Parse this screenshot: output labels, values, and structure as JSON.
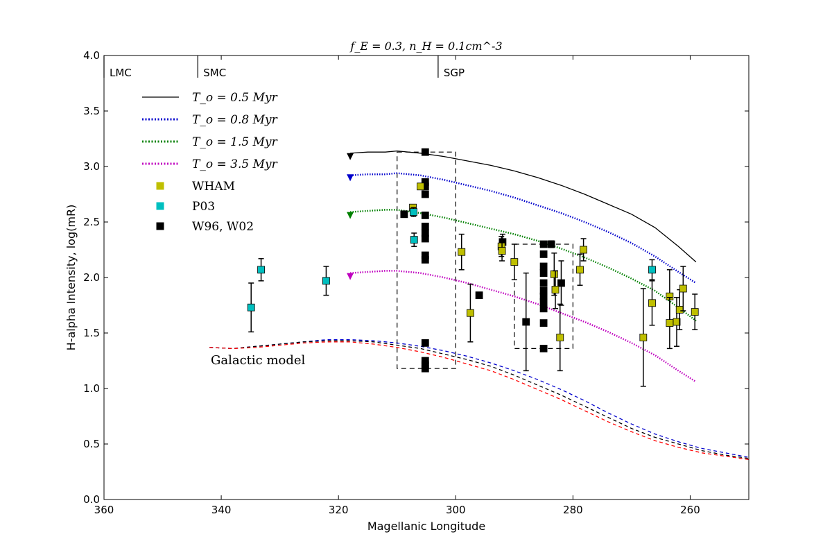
{
  "chart_data": {
    "type": "scatter",
    "title": "f_E = 0.3, n_H = 0.1cm^-3",
    "xlabel": "Magellanic Longitude",
    "ylabel": "H-alpha Intensity, log(mR)",
    "xlim": [
      360,
      250
    ],
    "ylim": [
      0.0,
      4.0
    ],
    "xticks": [
      360,
      340,
      320,
      300,
      280,
      260
    ],
    "yticks": [
      0.0,
      0.5,
      1.0,
      1.5,
      2.0,
      2.5,
      3.0,
      3.5,
      4.0
    ],
    "xtick_labels": [
      "360",
      "340",
      "320",
      "300",
      "280",
      "260"
    ],
    "ytick_labels": [
      "0.0",
      "0.5",
      "1.0",
      "1.5",
      "2.0",
      "2.5",
      "3.0",
      "3.5",
      "4.0"
    ],
    "grid": false,
    "legend_position": "upper-left",
    "markers": [
      {
        "label": "LMC",
        "x": 360
      },
      {
        "label": "SMC",
        "x": 344
      },
      {
        "label": "SGP",
        "x": 303
      }
    ],
    "annotation": "Galactic model",
    "model_x": [
      318,
      315,
      312,
      310,
      306,
      302,
      298,
      294,
      290,
      286,
      282,
      278,
      274,
      270,
      266,
      262,
      259
    ],
    "model_series": [
      {
        "name": "T_o = 0.5 Myr",
        "color": "#000000",
        "style": "solid",
        "start_y": 3.07,
        "values": [
          3.12,
          3.13,
          3.13,
          3.14,
          3.12,
          3.09,
          3.05,
          3.01,
          2.96,
          2.9,
          2.83,
          2.75,
          2.66,
          2.57,
          2.45,
          2.28,
          2.14
        ]
      },
      {
        "name": "T_o = 0.8 Myr",
        "color": "#0000cc",
        "style": "dotted",
        "start_y": 2.88,
        "values": [
          2.92,
          2.93,
          2.93,
          2.94,
          2.92,
          2.88,
          2.83,
          2.78,
          2.72,
          2.65,
          2.58,
          2.5,
          2.41,
          2.31,
          2.19,
          2.05,
          1.95
        ]
      },
      {
        "name": "T_o = 1.5 Myr",
        "color": "#008000",
        "style": "dotted",
        "start_y": 2.54,
        "values": [
          2.59,
          2.6,
          2.61,
          2.61,
          2.58,
          2.54,
          2.49,
          2.44,
          2.39,
          2.33,
          2.26,
          2.18,
          2.09,
          1.99,
          1.88,
          1.73,
          1.61
        ]
      },
      {
        "name": "T_o = 3.5 Myr",
        "color": "#bf00bf",
        "style": "dotted",
        "start_y": 1.99,
        "values": [
          2.04,
          2.05,
          2.06,
          2.06,
          2.04,
          2.0,
          1.95,
          1.89,
          1.83,
          1.76,
          1.68,
          1.6,
          1.51,
          1.41,
          1.3,
          1.16,
          1.06
        ]
      }
    ],
    "galactic_x": [
      342,
      338,
      334,
      330,
      326,
      322,
      318,
      314,
      310,
      306,
      302,
      298,
      294,
      290,
      286,
      282,
      278,
      274,
      270,
      266,
      262,
      258,
      254,
      250
    ],
    "galactic_series": [
      {
        "name": "Galactic model (blue)",
        "color": "#0000cc",
        "values": [
          1.37,
          1.36,
          1.38,
          1.4,
          1.42,
          1.44,
          1.44,
          1.43,
          1.41,
          1.38,
          1.34,
          1.29,
          1.23,
          1.16,
          1.08,
          0.99,
          0.89,
          0.78,
          0.68,
          0.59,
          0.52,
          0.46,
          0.42,
          0.38
        ]
      },
      {
        "name": "Galactic model (black)",
        "color": "#000000",
        "values": [
          1.37,
          1.36,
          1.38,
          1.4,
          1.42,
          1.43,
          1.43,
          1.42,
          1.39,
          1.36,
          1.31,
          1.26,
          1.2,
          1.12,
          1.03,
          0.94,
          0.84,
          0.74,
          0.64,
          0.56,
          0.5,
          0.44,
          0.4,
          0.37
        ]
      },
      {
        "name": "Galactic model (red)",
        "color": "#ff0000",
        "values": [
          1.37,
          1.36,
          1.37,
          1.39,
          1.41,
          1.42,
          1.42,
          1.4,
          1.37,
          1.33,
          1.28,
          1.22,
          1.16,
          1.08,
          0.99,
          0.9,
          0.8,
          0.7,
          0.61,
          0.53,
          0.47,
          0.42,
          0.39,
          0.36
        ]
      }
    ],
    "scatter_series": [
      {
        "name": "WHAM",
        "color": "#bfbf00",
        "points": [
          {
            "x": 306.0,
            "y": 2.82,
            "e": 0.0
          },
          {
            "x": 307.3,
            "y": 2.63,
            "e": 0.0
          },
          {
            "x": 299.0,
            "y": 2.23,
            "e": 0.16
          },
          {
            "x": 297.5,
            "y": 1.68,
            "e": 0.26
          },
          {
            "x": 292.2,
            "y": 2.28,
            "e": 0.09
          },
          {
            "x": 292.1,
            "y": 2.24,
            "e": 0.09
          },
          {
            "x": 290.0,
            "y": 2.14,
            "e": 0.16
          },
          {
            "x": 283.2,
            "y": 2.03,
            "e": 0.19
          },
          {
            "x": 283.0,
            "y": 1.89,
            "e": 0.17
          },
          {
            "x": 282.2,
            "y": 1.46,
            "e": 0.3
          },
          {
            "x": 278.8,
            "y": 2.07,
            "e": 0.14
          },
          {
            "x": 278.2,
            "y": 2.25,
            "e": 0.1
          },
          {
            "x": 268.0,
            "y": 1.46,
            "e": 0.44
          },
          {
            "x": 266.5,
            "y": 1.77,
            "e": 0.2
          },
          {
            "x": 263.5,
            "y": 1.83,
            "e": 0.24
          },
          {
            "x": 263.5,
            "y": 1.59,
            "e": 0.23
          },
          {
            "x": 262.3,
            "y": 1.6,
            "e": 0.22
          },
          {
            "x": 261.8,
            "y": 1.71,
            "e": 0.18
          },
          {
            "x": 261.2,
            "y": 1.9,
            "e": 0.2
          },
          {
            "x": 259.2,
            "y": 1.69,
            "e": 0.16
          }
        ]
      },
      {
        "name": "P03",
        "color": "#00bfbf",
        "points": [
          {
            "x": 334.9,
            "y": 1.73,
            "e": 0.22
          },
          {
            "x": 333.2,
            "y": 2.07,
            "e": 0.1
          },
          {
            "x": 322.1,
            "y": 1.97,
            "e": 0.13
          },
          {
            "x": 307.1,
            "y": 2.34,
            "e": 0.06
          },
          {
            "x": 307.2,
            "y": 2.59,
            "e": 0.04
          },
          {
            "x": 266.5,
            "y": 2.07,
            "e": 0.09
          }
        ]
      },
      {
        "name": "W96, W02",
        "color": "#000000",
        "points": [
          {
            "x": 305.2,
            "y": 3.13,
            "e": 0.0
          },
          {
            "x": 308.8,
            "y": 2.57,
            "e": 0.0
          },
          {
            "x": 305.2,
            "y": 2.86,
            "e": 0.0
          },
          {
            "x": 305.2,
            "y": 2.82,
            "e": 0.0
          },
          {
            "x": 305.2,
            "y": 2.75,
            "e": 0.0
          },
          {
            "x": 305.2,
            "y": 2.56,
            "e": 0.0
          },
          {
            "x": 305.2,
            "y": 2.46,
            "e": 0.0
          },
          {
            "x": 305.2,
            "y": 2.4,
            "e": 0.0
          },
          {
            "x": 305.2,
            "y": 2.35,
            "e": 0.0
          },
          {
            "x": 305.2,
            "y": 2.2,
            "e": 0.0
          },
          {
            "x": 305.2,
            "y": 2.16,
            "e": 0.0
          },
          {
            "x": 305.2,
            "y": 1.41,
            "e": 0.0
          },
          {
            "x": 305.2,
            "y": 1.25,
            "e": 0.0
          },
          {
            "x": 305.2,
            "y": 1.21,
            "e": 0.0
          },
          {
            "x": 305.2,
            "y": 1.18,
            "e": 0.0
          },
          {
            "x": 292.0,
            "y": 2.32,
            "e": 0.07
          },
          {
            "x": 296.0,
            "y": 1.84,
            "e": 0.0
          },
          {
            "x": 288.0,
            "y": 1.6,
            "e": 0.44
          },
          {
            "x": 285.0,
            "y": 2.3,
            "e": 0.0
          },
          {
            "x": 285.0,
            "y": 2.21,
            "e": 0.0
          },
          {
            "x": 285.0,
            "y": 2.1,
            "e": 0.0
          },
          {
            "x": 285.0,
            "y": 2.04,
            "e": 0.0
          },
          {
            "x": 285.0,
            "y": 1.95,
            "e": 0.0
          },
          {
            "x": 285.0,
            "y": 1.88,
            "e": 0.0
          },
          {
            "x": 285.0,
            "y": 1.83,
            "e": 0.0
          },
          {
            "x": 285.0,
            "y": 1.78,
            "e": 0.0
          },
          {
            "x": 285.0,
            "y": 1.72,
            "e": 0.0
          },
          {
            "x": 285.0,
            "y": 1.59,
            "e": 0.0
          },
          {
            "x": 285.0,
            "y": 1.36,
            "e": 0.0
          },
          {
            "x": 283.7,
            "y": 2.3,
            "e": 0.03
          },
          {
            "x": 282.0,
            "y": 1.95,
            "e": 0.2
          }
        ]
      }
    ],
    "boxes": [
      {
        "x0": 310,
        "x1": 300,
        "y0": 1.18,
        "y1": 3.13
      },
      {
        "x0": 290,
        "x1": 280,
        "y0": 1.36,
        "y1": 2.3
      }
    ]
  }
}
